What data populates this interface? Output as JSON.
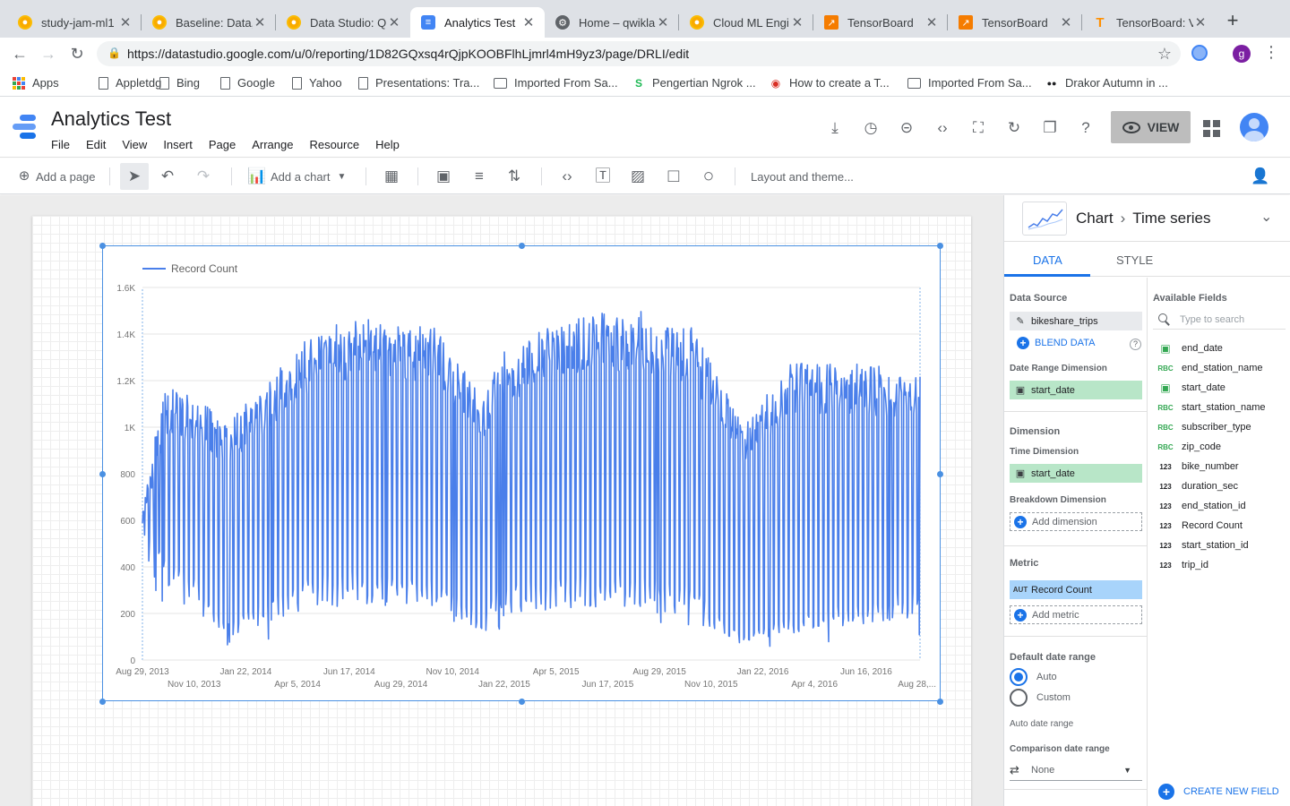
{
  "browser": {
    "tabs": [
      {
        "title": "study-jam-ml1",
        "icon": "jam-icon"
      },
      {
        "title": "Baseline: Data,",
        "icon": "jam-icon"
      },
      {
        "title": "Data Studio: Q",
        "icon": "jam-icon"
      },
      {
        "title": "Analytics Test",
        "icon": "datastudio-icon",
        "active": true
      },
      {
        "title": "Home – qwiklab",
        "icon": "home-icon"
      },
      {
        "title": "Cloud ML Engi",
        "icon": "jam-icon"
      },
      {
        "title": "TensorBoard",
        "icon": "tensorboard-icon"
      },
      {
        "title": "TensorBoard",
        "icon": "tensorboard-icon"
      },
      {
        "title": "TensorBoard: V",
        "icon": "tensorflow-icon"
      }
    ],
    "url": "https://datastudio.google.com/u/0/reporting/1D82GQxsq4rQjpKOOBFlhLjmrl4mH9yz3/page/DRLI/edit",
    "profile_initial": "g",
    "bookmarks": [
      {
        "label": "Apps",
        "icon": "apps-grid-icon"
      },
      {
        "label": "Appletdg",
        "icon": "page-icon"
      },
      {
        "label": "Bing",
        "icon": "page-icon"
      },
      {
        "label": "Google",
        "icon": "page-icon"
      },
      {
        "label": "Yahoo",
        "icon": "page-icon"
      },
      {
        "label": "Presentations: Tra...",
        "icon": "page-icon"
      },
      {
        "label": "Imported From Sa...",
        "icon": "folder-icon"
      },
      {
        "label": "Pengertian Ngrok ...",
        "icon": "site-icon"
      },
      {
        "label": "How to create a T...",
        "icon": "site-icon"
      },
      {
        "label": "Imported From Sa...",
        "icon": "folder-icon"
      },
      {
        "label": "Drakor Autumn in ...",
        "icon": "site-icon"
      }
    ]
  },
  "app": {
    "title": "Analytics Test",
    "menus": [
      "File",
      "Edit",
      "View",
      "Insert",
      "Page",
      "Arrange",
      "Resource",
      "Help"
    ],
    "view_label": "VIEW"
  },
  "toolbar": {
    "add_page": "Add a page",
    "add_chart": "Add a chart",
    "layout_theme": "Layout and theme..."
  },
  "panel": {
    "crumb_parent": "Chart",
    "crumb_child": "Time series",
    "tab_data": "DATA",
    "tab_style": "STYLE",
    "data_source_label": "Data Source",
    "data_source": "bikeshare_trips",
    "blend_data": "BLEND DATA",
    "date_range_dimension_label": "Date Range Dimension",
    "date_range_dimension": "start_date",
    "dimension_label": "Dimension",
    "time_dimension_label": "Time Dimension",
    "time_dimension": "start_date",
    "breakdown_label": "Breakdown Dimension",
    "add_dimension": "Add dimension",
    "metric_label": "Metric",
    "metric_type": "AUT",
    "metric": "Record Count",
    "add_metric": "Add metric",
    "default_date_range_label": "Default date range",
    "auto": "Auto",
    "custom": "Custom",
    "auto_date_range": "Auto date range",
    "comparison_label": "Comparison date range",
    "comparison_value": "None",
    "available_fields_label": "Available Fields",
    "search_placeholder": "Type to search",
    "fields": [
      {
        "name": "end_date",
        "type": "date"
      },
      {
        "name": "end_station_name",
        "type": "text"
      },
      {
        "name": "start_date",
        "type": "date"
      },
      {
        "name": "start_station_name",
        "type": "text"
      },
      {
        "name": "subscriber_type",
        "type": "text"
      },
      {
        "name": "zip_code",
        "type": "text"
      },
      {
        "name": "bike_number",
        "type": "number"
      },
      {
        "name": "duration_sec",
        "type": "number"
      },
      {
        "name": "end_station_id",
        "type": "number"
      },
      {
        "name": "Record Count",
        "type": "number"
      },
      {
        "name": "start_station_id",
        "type": "number"
      },
      {
        "name": "trip_id",
        "type": "number"
      }
    ],
    "field_type_badges": {
      "text": "RBC",
      "number": "123"
    },
    "create_new_field": "CREATE NEW FIELD"
  },
  "chart_data": {
    "type": "line",
    "legend": "top-left",
    "color": "#4a7fea",
    "series": [
      {
        "name": "Record Count"
      }
    ],
    "ylim": [
      0,
      1600
    ],
    "yticks": [
      0,
      200,
      400,
      600,
      800,
      1000,
      1200,
      1400,
      1600
    ],
    "ytick_labels": [
      "0",
      "200",
      "400",
      "600",
      "800",
      "1K",
      "1.2K",
      "1.4K",
      "1.6K"
    ],
    "xlim": [
      "2013-08-29",
      "2016-08-31"
    ],
    "xticks_row1": [
      {
        "date": "2013-08-29",
        "label": "Aug 29, 2013"
      },
      {
        "date": "2014-01-22",
        "label": "Jan 22, 2014"
      },
      {
        "date": "2014-06-17",
        "label": "Jun 17, 2014"
      },
      {
        "date": "2014-11-10",
        "label": "Nov 10, 2014"
      },
      {
        "date": "2015-04-05",
        "label": "Apr 5, 2015"
      },
      {
        "date": "2015-08-29",
        "label": "Aug 29, 2015"
      },
      {
        "date": "2016-01-22",
        "label": "Jan 22, 2016"
      },
      {
        "date": "2016-06-16",
        "label": "Jun 16, 2016"
      }
    ],
    "xticks_row2": [
      {
        "date": "2013-11-10",
        "label": "Nov 10, 2013"
      },
      {
        "date": "2014-04-05",
        "label": "Apr 5, 2014"
      },
      {
        "date": "2014-08-29",
        "label": "Aug 29, 2014"
      },
      {
        "date": "2015-01-22",
        "label": "Jan 22, 2015"
      },
      {
        "date": "2015-06-17",
        "label": "Jun 17, 2015"
      },
      {
        "date": "2015-11-10",
        "label": "Nov 10, 2015"
      },
      {
        "date": "2016-04-04",
        "label": "Apr 4, 2016"
      },
      {
        "date": "2016-08-28",
        "label": "Aug 28,..."
      }
    ],
    "envelope": [
      {
        "date": "2013-08-29",
        "weekday_high": 700,
        "weekend_low": 550
      },
      {
        "date": "2013-10-01",
        "weekday_high": 1150,
        "weekend_low": 350
      },
      {
        "date": "2013-11-15",
        "weekday_high": 1100,
        "weekend_low": 300
      },
      {
        "date": "2013-12-25",
        "weekday_high": 1000,
        "weekend_low": 120
      },
      {
        "date": "2014-02-15",
        "weekday_high": 1150,
        "weekend_low": 200
      },
      {
        "date": "2014-05-01",
        "weekday_high": 1400,
        "weekend_low": 300
      },
      {
        "date": "2014-08-01",
        "weekday_high": 1450,
        "weekend_low": 320
      },
      {
        "date": "2014-10-15",
        "weekday_high": 1400,
        "weekend_low": 300
      },
      {
        "date": "2014-12-25",
        "weekday_high": 1100,
        "weekend_low": 150
      },
      {
        "date": "2015-01-10",
        "weekday_high": 1300,
        "weekend_low": 250
      },
      {
        "date": "2015-05-01",
        "weekday_high": 1450,
        "weekend_low": 300
      },
      {
        "date": "2015-08-01",
        "weekday_high": 1480,
        "weekend_low": 300
      },
      {
        "date": "2015-10-15",
        "weekday_high": 1400,
        "weekend_low": 250
      },
      {
        "date": "2015-12-25",
        "weekday_high": 1000,
        "weekend_low": 80
      },
      {
        "date": "2016-03-01",
        "weekday_high": 1250,
        "weekend_low": 150
      },
      {
        "date": "2016-06-01",
        "weekday_high": 1250,
        "weekend_low": 200
      },
      {
        "date": "2016-08-31",
        "weekday_high": 1230,
        "weekend_low": 250
      }
    ]
  }
}
